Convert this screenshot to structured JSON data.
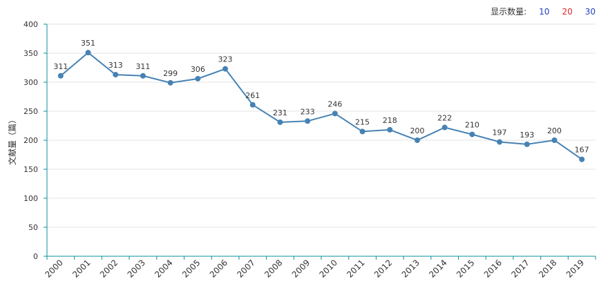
{
  "controls": {
    "label": "显示数量:",
    "options": [
      {
        "text": "10",
        "color": "#1f3fbf"
      },
      {
        "text": "20",
        "color": "#d62728"
      },
      {
        "text": "30",
        "color": "#1f3fbf"
      }
    ]
  },
  "chart_data": {
    "type": "line",
    "title": "",
    "xlabel": "",
    "ylabel": "文献量（篇）",
    "ylim": [
      0,
      400
    ],
    "yticks": [
      0,
      50,
      100,
      150,
      200,
      250,
      300,
      350,
      400
    ],
    "grid": true,
    "line_color": "#4682b4",
    "axis_color": "#0a8f9b",
    "categories": [
      "2000",
      "2001",
      "2002",
      "2003",
      "2004",
      "2005",
      "2006",
      "2007",
      "2008",
      "2009",
      "2010",
      "2011",
      "2012",
      "2013",
      "2014",
      "2015",
      "2016",
      "2017",
      "2018",
      "2019"
    ],
    "values": [
      311,
      351,
      313,
      311,
      299,
      306,
      323,
      261,
      231,
      233,
      246,
      215,
      218,
      200,
      222,
      210,
      197,
      193,
      200,
      167
    ]
  }
}
